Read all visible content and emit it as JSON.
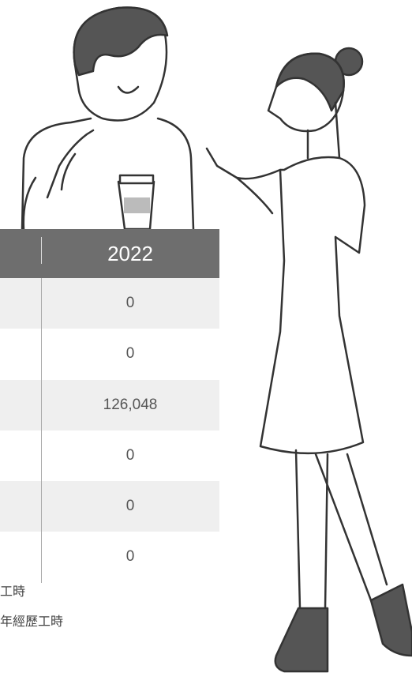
{
  "table": {
    "header": "2022",
    "rows": [
      "0",
      "0",
      "126,048",
      "0",
      "0",
      "0"
    ]
  },
  "notes": [
    "工時",
    "年經歷工時"
  ]
}
